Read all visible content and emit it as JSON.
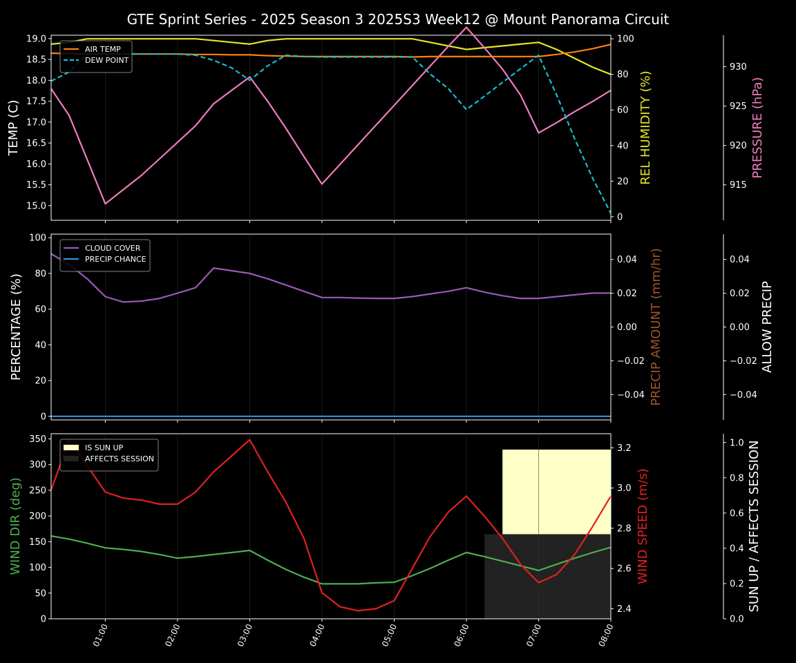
{
  "title": "GTE Sprint Series - 2025 Season 3 2025S3 Week12 @ Mount Panorama Circuit",
  "colors": {
    "air_temp": "#ff7f0e",
    "dew_point": "#17becf",
    "humidity": "#e5e52a",
    "pressure": "#f07cc0",
    "cloud_cover": "#9b59b6",
    "precip_chance": "#3a8fd8",
    "precip_amount": "#a0522d",
    "wind_dir": "#4caf50",
    "wind_speed": "#e02020",
    "sun_up": "#ffffc8",
    "affects_session": "#222222"
  },
  "chart_data": [
    {
      "type": "line",
      "panel": "temperature",
      "x": [
        "00:15",
        "00:30",
        "00:45",
        "01:00",
        "01:15",
        "01:30",
        "01:45",
        "02:00",
        "02:15",
        "02:30",
        "02:45",
        "03:00",
        "03:15",
        "03:30",
        "03:45",
        "04:00",
        "04:15",
        "04:30",
        "04:45",
        "05:00",
        "05:15",
        "05:30",
        "05:45",
        "06:00",
        "06:15",
        "06:30",
        "06:45",
        "07:00",
        "07:15",
        "07:30",
        "07:45",
        "08:00"
      ],
      "xticks": [
        "01:00",
        "02:00",
        "03:00",
        "04:00",
        "05:00",
        "06:00",
        "07:00",
        "08:00"
      ],
      "ylabel": "TEMP (C)",
      "ylim": [
        14.65,
        19.08
      ],
      "yticks": [
        "15.0",
        "15.5",
        "16.0",
        "16.5",
        "17.0",
        "17.5",
        "18.0",
        "18.5",
        "19.0"
      ],
      "y2label": "REL HUMIDITY (%)",
      "y2lim": [
        -2,
        102
      ],
      "y2ticks": [
        "0",
        "20",
        "40",
        "60",
        "80",
        "100"
      ],
      "y3label": "PRESSURE (hPa)",
      "y3lim": [
        910.5,
        934.0
      ],
      "y3ticks": [
        "915",
        "920",
        "925",
        "930"
      ],
      "legend": [
        "AIR TEMP",
        "DEW POINT"
      ],
      "series": [
        {
          "name": "AIR TEMP",
          "axis": "left",
          "values": [
            18.65,
            18.64,
            18.63,
            18.63,
            18.63,
            18.63,
            18.63,
            18.63,
            18.62,
            18.62,
            18.61,
            18.61,
            18.59,
            18.58,
            18.57,
            18.57,
            18.57,
            18.57,
            18.57,
            18.57,
            18.56,
            18.57,
            18.57,
            18.57,
            18.57,
            18.57,
            18.57,
            18.57,
            18.62,
            18.68,
            18.76,
            18.86
          ]
        },
        {
          "name": "DEW POINT",
          "axis": "left",
          "values": [
            17.98,
            18.2,
            18.64,
            18.64,
            18.63,
            18.63,
            18.63,
            18.63,
            18.6,
            18.48,
            18.3,
            18.0,
            18.35,
            18.6,
            18.57,
            18.56,
            18.56,
            18.56,
            18.56,
            18.56,
            18.56,
            18.15,
            17.8,
            17.3,
            17.62,
            17.95,
            18.28,
            18.6,
            17.65,
            16.6,
            15.65,
            14.82
          ]
        },
        {
          "name": "REL HUMIDITY",
          "axis": "right",
          "values": [
            97,
            98,
            100,
            100,
            100,
            100,
            100,
            100,
            100,
            99,
            98,
            97,
            99,
            100,
            100,
            100,
            100,
            100,
            100,
            100,
            100,
            98,
            96,
            94,
            95,
            96,
            97,
            98,
            94,
            89,
            84,
            80
          ]
        },
        {
          "name": "PRESSURE",
          "axis": "far-right",
          "values": [
            927.2,
            923.8,
            918.2,
            912.6,
            914.4,
            916.2,
            918.3,
            920.4,
            922.5,
            925.3,
            927.0,
            928.7,
            925.6,
            922.2,
            918.6,
            915.1,
            917.6,
            920.1,
            922.6,
            925.1,
            927.6,
            930.1,
            932.6,
            935.0,
            932.4,
            929.7,
            926.4,
            921.6,
            922.9,
            924.3,
            925.6,
            927.0
          ]
        }
      ]
    },
    {
      "type": "line",
      "panel": "clouds",
      "ylabel": "PERCENTAGE (%)",
      "ylim": [
        -2,
        102
      ],
      "yticks": [
        "0",
        "20",
        "40",
        "60",
        "80",
        "100"
      ],
      "y2label": "PRECIP AMOUNT (mm/hr)",
      "y2lim": [
        -0.055,
        0.055
      ],
      "y2ticks": [
        "−0.04",
        "−0.02",
        "0.00",
        "0.02",
        "0.04"
      ],
      "y3label": "ALLOW PRECIP",
      "y3lim": [
        -0.055,
        0.055
      ],
      "y3ticks": [
        "−0.04",
        "−0.02",
        "0.00",
        "0.02",
        "0.04"
      ],
      "legend": [
        "CLOUD COVER",
        "PRECIP CHANCE"
      ],
      "series": [
        {
          "name": "CLOUD COVER",
          "values": [
            91,
            85,
            77,
            67,
            64,
            64.5,
            66,
            69,
            72,
            83,
            81.5,
            80,
            77,
            73.5,
            70,
            66.5,
            66.5,
            66.2,
            66,
            66,
            67,
            68.5,
            70,
            72,
            69.5,
            67.5,
            66,
            66,
            67,
            68,
            69,
            69
          ]
        },
        {
          "name": "PRECIP CHANCE",
          "values": [
            0,
            0,
            0,
            0,
            0,
            0,
            0,
            0,
            0,
            0,
            0,
            0,
            0,
            0,
            0,
            0,
            0,
            0,
            0,
            0,
            0,
            0,
            0,
            0,
            0,
            0,
            0,
            0,
            0,
            0,
            0,
            0
          ]
        }
      ]
    },
    {
      "type": "line",
      "panel": "wind",
      "ylabel": "WIND DIR (deg)",
      "ylim": [
        0,
        360
      ],
      "yticks": [
        "0",
        "50",
        "100",
        "150",
        "200",
        "250",
        "300",
        "350"
      ],
      "y2label": "WIND SPEED (m/s)",
      "y2lim": [
        2.35,
        3.27
      ],
      "y2ticks": [
        "2.4",
        "2.6",
        "2.8",
        "3.0",
        "3.2"
      ],
      "y3label": "SUN UP / AFFECTS SESSION",
      "y3lim": [
        0,
        1.05
      ],
      "y3ticks": [
        "0.0",
        "0.2",
        "0.4",
        "0.6",
        "0.8",
        "1.0"
      ],
      "legend": [
        "IS SUN UP",
        "AFFECTS SESSION"
      ],
      "series": [
        {
          "name": "WIND DIR",
          "axis": "left",
          "values": [
            161,
            155,
            147,
            138,
            135,
            131,
            125,
            118,
            121,
            125,
            129,
            133,
            114,
            96,
            81,
            68,
            68,
            68,
            70,
            71,
            84,
            98,
            114,
            129,
            121,
            112,
            103,
            94,
            106,
            118,
            129,
            139
          ]
        },
        {
          "name": "WIND SPEED",
          "axis": "right",
          "values": [
            2.99,
            3.24,
            3.11,
            2.98,
            2.95,
            2.94,
            2.92,
            2.92,
            2.98,
            3.08,
            3.16,
            3.24,
            3.08,
            2.93,
            2.75,
            2.48,
            2.41,
            2.39,
            2.4,
            2.44,
            2.6,
            2.76,
            2.88,
            2.96,
            2.86,
            2.75,
            2.62,
            2.53,
            2.57,
            2.67,
            2.81,
            2.96
          ]
        }
      ],
      "bands": [
        {
          "name": "IS SUN UP",
          "start": "06:30",
          "end": "08:00",
          "level": 0.96
        },
        {
          "name": "AFFECTS SESSION",
          "start": "06:15",
          "end": "08:00",
          "level": 0.48
        }
      ]
    }
  ]
}
